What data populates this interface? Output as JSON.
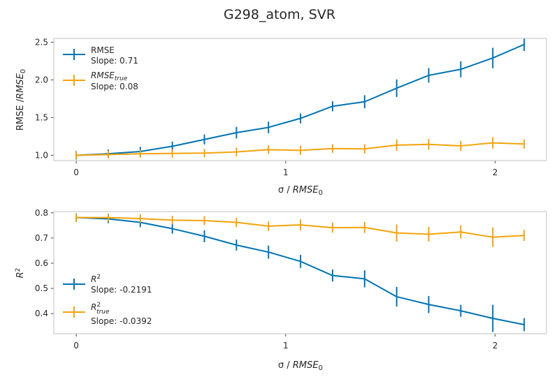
{
  "figure_title": "G298_atom, SVR",
  "colors": {
    "rmse": "#0173b2",
    "true": "#f5a30b",
    "frame": "#cccccc"
  },
  "chart_data": [
    {
      "type": "line",
      "xlabel_prefix": "σ / ",
      "xlabel_math": "RMSE",
      "xlabel_sub": "0",
      "ylabel_text": "RMSE /",
      "ylabel_math": "RMSE",
      "ylabel_sub": "0",
      "xlim": [
        -0.107,
        2.245
      ],
      "ylim": [
        0.93,
        2.55
      ],
      "xticks": [
        0,
        1,
        2
      ],
      "xtick_labels": [
        "0",
        "1",
        "2"
      ],
      "yticks": [
        1.0,
        1.5,
        2.0,
        2.5
      ],
      "ytick_labels": [
        "1.0",
        "1.5",
        "2.0",
        "2.5"
      ],
      "legend_position": "upper-left",
      "x": [
        0.0,
        0.153,
        0.306,
        0.459,
        0.612,
        0.765,
        0.918,
        1.071,
        1.224,
        1.377,
        1.53,
        1.683,
        1.836,
        1.989,
        2.139
      ],
      "series": [
        {
          "name": "RMSE",
          "legend_slope": "Slope: 0.71",
          "values": [
            1.0,
            1.02,
            1.05,
            1.12,
            1.21,
            1.3,
            1.37,
            1.49,
            1.65,
            1.71,
            1.89,
            2.06,
            2.14,
            2.29,
            2.47
          ],
          "errors": [
            0.01,
            0.01,
            0.015,
            0.015,
            0.02,
            0.03,
            0.03,
            0.02,
            0.02,
            0.04,
            0.07,
            0.05,
            0.06,
            0.09,
            0.04
          ]
        },
        {
          "name_math": "RMSE",
          "name_sub": "true",
          "legend_slope": "Slope: 0.08",
          "values": [
            1.0,
            1.01,
            1.02,
            1.025,
            1.03,
            1.045,
            1.075,
            1.065,
            1.09,
            1.085,
            1.135,
            1.145,
            1.125,
            1.165,
            1.15
          ],
          "errors": [
            0.005,
            0.005,
            0.005,
            0.008,
            0.008,
            0.01,
            0.01,
            0.015,
            0.01,
            0.015,
            0.03,
            0.025,
            0.02,
            0.03,
            0.015
          ]
        }
      ]
    },
    {
      "type": "line",
      "xlabel_prefix": "σ / ",
      "xlabel_math": "RMSE",
      "xlabel_sub": "0",
      "ylabel_math": "R",
      "ylabel_sup": "2",
      "xlim": [
        -0.107,
        2.245
      ],
      "ylim": [
        0.32,
        0.805
      ],
      "xticks": [
        0,
        1,
        2
      ],
      "xtick_labels": [
        "0",
        "1",
        "2"
      ],
      "yticks": [
        0.4,
        0.5,
        0.6,
        0.7,
        0.8
      ],
      "ytick_labels": [
        "0.4",
        "0.5",
        "0.6",
        "0.7",
        "0.8"
      ],
      "legend_position": "lower-left",
      "x": [
        0.0,
        0.153,
        0.306,
        0.459,
        0.612,
        0.765,
        0.918,
        1.071,
        1.224,
        1.377,
        1.53,
        1.683,
        1.836,
        1.989,
        2.139
      ],
      "series": [
        {
          "name_math": "R",
          "name_sup": "2",
          "legend_slope": "Slope: -0.2191",
          "values": [
            0.781,
            0.776,
            0.762,
            0.737,
            0.707,
            0.672,
            0.644,
            0.607,
            0.551,
            0.538,
            0.467,
            0.436,
            0.411,
            0.381,
            0.356
          ],
          "errors": [
            0.003,
            0.003,
            0.005,
            0.006,
            0.01,
            0.008,
            0.012,
            0.012,
            0.01,
            0.02,
            0.025,
            0.02,
            0.01,
            0.04,
            0.012
          ]
        },
        {
          "name_math": "R",
          "name_sup": "2",
          "name_sub": "true",
          "legend_slope": "Slope: -0.0392",
          "values": [
            0.781,
            0.781,
            0.777,
            0.771,
            0.769,
            0.762,
            0.747,
            0.752,
            0.741,
            0.742,
            0.72,
            0.715,
            0.724,
            0.703,
            0.71
          ],
          "errors": [
            0.002,
            0.002,
            0.003,
            0.003,
            0.004,
            0.005,
            0.005,
            0.008,
            0.006,
            0.008,
            0.02,
            0.015,
            0.012,
            0.025,
            0.008
          ]
        }
      ]
    }
  ]
}
